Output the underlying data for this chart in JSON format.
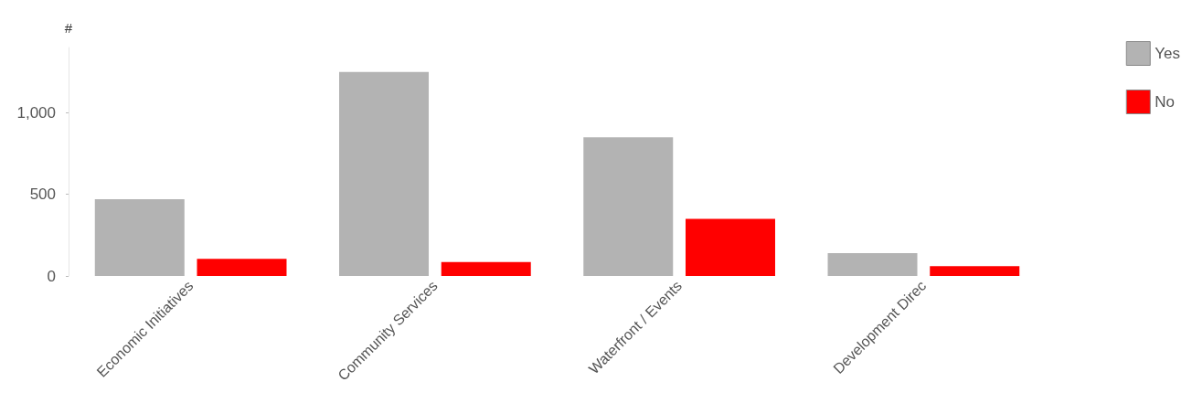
{
  "chart_data": {
    "type": "bar",
    "ylabel": "#",
    "categories": [
      "Economic Initiatives",
      "Community Services",
      "Waterfront / Events",
      "Development Direc"
    ],
    "series": [
      {
        "name": "Yes",
        "color": "#b3b3b3",
        "values": [
          470,
          1250,
          850,
          140
        ]
      },
      {
        "name": "No",
        "color": "#ff0000",
        "values": [
          105,
          85,
          350,
          60
        ]
      }
    ],
    "ylim": [
      0,
      1400
    ],
    "yticks": [
      0,
      500,
      {
        "value": 1000,
        "label": "1,000"
      }
    ],
    "grid": false,
    "legend": "top right"
  }
}
